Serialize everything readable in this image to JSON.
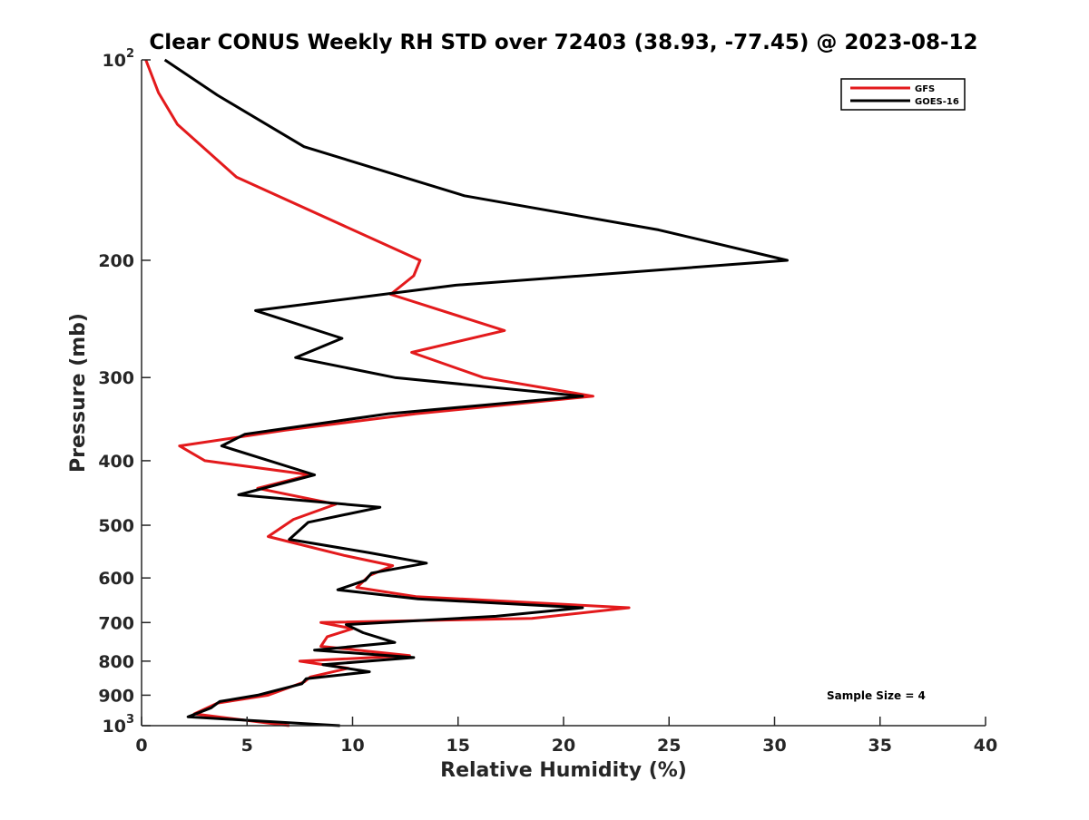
{
  "chart_data": {
    "type": "line",
    "title": "Clear CONUS Weekly RH STD over 72403 (38.93, -77.45) @ 2023-08-12",
    "xlabel": "Relative Humidity (%)",
    "ylabel": "Pressure (mb)",
    "xlim": [
      0,
      40
    ],
    "ylim": [
      100,
      1000
    ],
    "y_scale": "log",
    "y_reversed": true,
    "x_ticks": [
      0,
      5,
      10,
      15,
      20,
      25,
      30,
      35,
      40
    ],
    "x_tick_labels": [
      "0",
      "5",
      "10",
      "15",
      "20",
      "25",
      "30",
      "35",
      "40"
    ],
    "y_ticks": [
      100,
      200,
      300,
      400,
      500,
      600,
      700,
      800,
      900,
      1000
    ],
    "y_tick_labels": [
      {
        "base": "10",
        "exp": "2"
      },
      {
        "base": "200",
        "exp": ""
      },
      {
        "base": "300",
        "exp": ""
      },
      {
        "base": "400",
        "exp": ""
      },
      {
        "base": "500",
        "exp": ""
      },
      {
        "base": "600",
        "exp": ""
      },
      {
        "base": "700",
        "exp": ""
      },
      {
        "base": "800",
        "exp": ""
      },
      {
        "base": "900",
        "exp": ""
      },
      {
        "base": "10",
        "exp": "3"
      }
    ],
    "grid": false,
    "legend_position": "top-right",
    "annotation": "Sample Size = 4",
    "series": [
      {
        "name": "GFS",
        "color": "#e31a1c",
        "points": [
          [
            0.2,
            100
          ],
          [
            0.8,
            112
          ],
          [
            1.7,
            125
          ],
          [
            4.5,
            150
          ],
          [
            13.2,
            200
          ],
          [
            12.9,
            211
          ],
          [
            11.8,
            225
          ],
          [
            17.2,
            255
          ],
          [
            12.8,
            275
          ],
          [
            16.2,
            300
          ],
          [
            21.4,
            320
          ],
          [
            13.0,
            340
          ],
          [
            6.8,
            360
          ],
          [
            1.8,
            380
          ],
          [
            3.0,
            400
          ],
          [
            8.0,
            420
          ],
          [
            5.5,
            440
          ],
          [
            9.2,
            465
          ],
          [
            7.2,
            490
          ],
          [
            6.0,
            520
          ],
          [
            9.6,
            555
          ],
          [
            11.9,
            575
          ],
          [
            10.8,
            595
          ],
          [
            10.2,
            620
          ],
          [
            13.0,
            640
          ],
          [
            23.1,
            665
          ],
          [
            18.5,
            690
          ],
          [
            8.5,
            700
          ],
          [
            10.0,
            715
          ],
          [
            8.8,
            735
          ],
          [
            8.5,
            760
          ],
          [
            12.7,
            785
          ],
          [
            7.5,
            800
          ],
          [
            9.8,
            820
          ],
          [
            8.0,
            845
          ],
          [
            7.7,
            860
          ],
          [
            6.0,
            900
          ],
          [
            3.6,
            925
          ],
          [
            2.5,
            960
          ],
          [
            7.0,
            1000
          ]
        ]
      },
      {
        "name": "GOES-16",
        "color": "#000000",
        "points": [
          [
            1.1,
            100
          ],
          [
            3.6,
            113
          ],
          [
            7.7,
            135
          ],
          [
            15.3,
            160
          ],
          [
            24.5,
            180
          ],
          [
            30.6,
            200
          ],
          [
            14.9,
            218
          ],
          [
            5.4,
            238
          ],
          [
            9.5,
            262
          ],
          [
            7.3,
            280
          ],
          [
            12.0,
            300
          ],
          [
            20.9,
            320
          ],
          [
            11.7,
            340
          ],
          [
            4.9,
            365
          ],
          [
            3.8,
            380
          ],
          [
            8.2,
            420
          ],
          [
            4.6,
            450
          ],
          [
            11.3,
            470
          ],
          [
            7.9,
            495
          ],
          [
            7.0,
            525
          ],
          [
            10.8,
            550
          ],
          [
            13.5,
            570
          ],
          [
            10.9,
            590
          ],
          [
            10.6,
            605
          ],
          [
            9.3,
            625
          ],
          [
            13.1,
            645
          ],
          [
            20.9,
            665
          ],
          [
            16.8,
            685
          ],
          [
            9.7,
            705
          ],
          [
            10.5,
            725
          ],
          [
            12.0,
            750
          ],
          [
            8.2,
            770
          ],
          [
            12.9,
            790
          ],
          [
            8.6,
            810
          ],
          [
            10.8,
            830
          ],
          [
            7.8,
            850
          ],
          [
            7.6,
            865
          ],
          [
            5.5,
            900
          ],
          [
            3.7,
            920
          ],
          [
            3.3,
            940
          ],
          [
            2.2,
            970
          ],
          [
            9.4,
            1000
          ]
        ]
      }
    ]
  }
}
